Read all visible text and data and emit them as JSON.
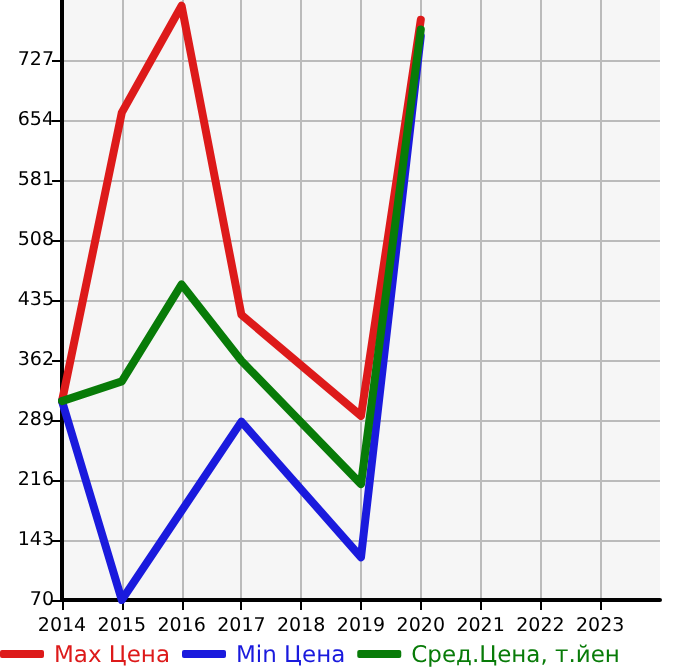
{
  "chart_data": {
    "type": "line",
    "x": [
      2014,
      2015,
      2016,
      2017,
      2019,
      2020
    ],
    "series": [
      {
        "name": "Max Цена",
        "color": "#dd1a1a",
        "values": [
          312,
          663,
          793,
          417,
          294,
          776
        ]
      },
      {
        "name": "Min Цена",
        "color": "#1a1add",
        "x": [
          2014,
          2015,
          2017,
          2019,
          2020
        ],
        "values": [
          312,
          70,
          287,
          122,
          756
        ]
      },
      {
        "name": "Сред.Цена, т.йен",
        "color": "#087b08",
        "values": [
          312,
          336,
          454,
          361,
          211,
          764
        ]
      }
    ],
    "xlim": [
      2014,
      2024
    ],
    "xticks": [
      2014,
      2015,
      2016,
      2017,
      2018,
      2019,
      2020,
      2021,
      2022,
      2023
    ],
    "ylim": [
      70,
      800
    ],
    "yticks": [
      70,
      143,
      216,
      289,
      362,
      435,
      508,
      581,
      654,
      727
    ],
    "grid": true,
    "legend": "bottom",
    "marker": "none",
    "line_style": "solid"
  }
}
